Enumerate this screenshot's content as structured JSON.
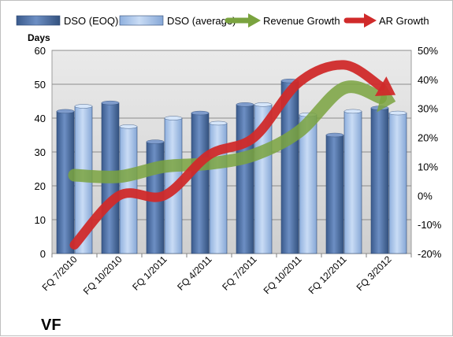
{
  "chart_data": {
    "type": "bar",
    "title": "VF",
    "categories": [
      "FQ 7/2010",
      "FQ 10/2010",
      "FQ 1/2011",
      "FQ 4/2011",
      "FQ 7/2011",
      "FQ 10/2011",
      "FQ 12/2011",
      "FQ 3/2012"
    ],
    "ylabel": "Days",
    "ylim": [
      0,
      60
    ],
    "y_ticks": [
      "0",
      "10",
      "20",
      "30",
      "40",
      "50",
      "60"
    ],
    "y2lim": [
      -20,
      50
    ],
    "y2_ticks": [
      "-20%",
      "-10%",
      "0%",
      "10%",
      "20%",
      "30%",
      "40%",
      "50%"
    ],
    "grid": true,
    "legend_position": "top",
    "series": [
      {
        "name": "DSO (EOQ)",
        "type": "bar",
        "axis": "left",
        "color": "#4f6fa3",
        "values": [
          42,
          44.5,
          33,
          41.5,
          44,
          51,
          35,
          43
        ]
      },
      {
        "name": "DSO (average)",
        "type": "bar",
        "axis": "left",
        "color": "#a9c4ea",
        "values": [
          43.5,
          37.5,
          40,
          38.5,
          44,
          41,
          42,
          41.5
        ]
      },
      {
        "name": "Revenue Growth",
        "type": "line",
        "axis": "right",
        "color": "#7aa33f",
        "values": [
          7,
          6.5,
          10,
          11,
          14,
          22,
          37,
          33
        ]
      },
      {
        "name": "AR Growth",
        "type": "line",
        "axis": "right",
        "color": "#d02a2a",
        "values": [
          -17,
          0,
          0,
          14,
          20,
          39,
          45,
          36
        ]
      }
    ]
  }
}
